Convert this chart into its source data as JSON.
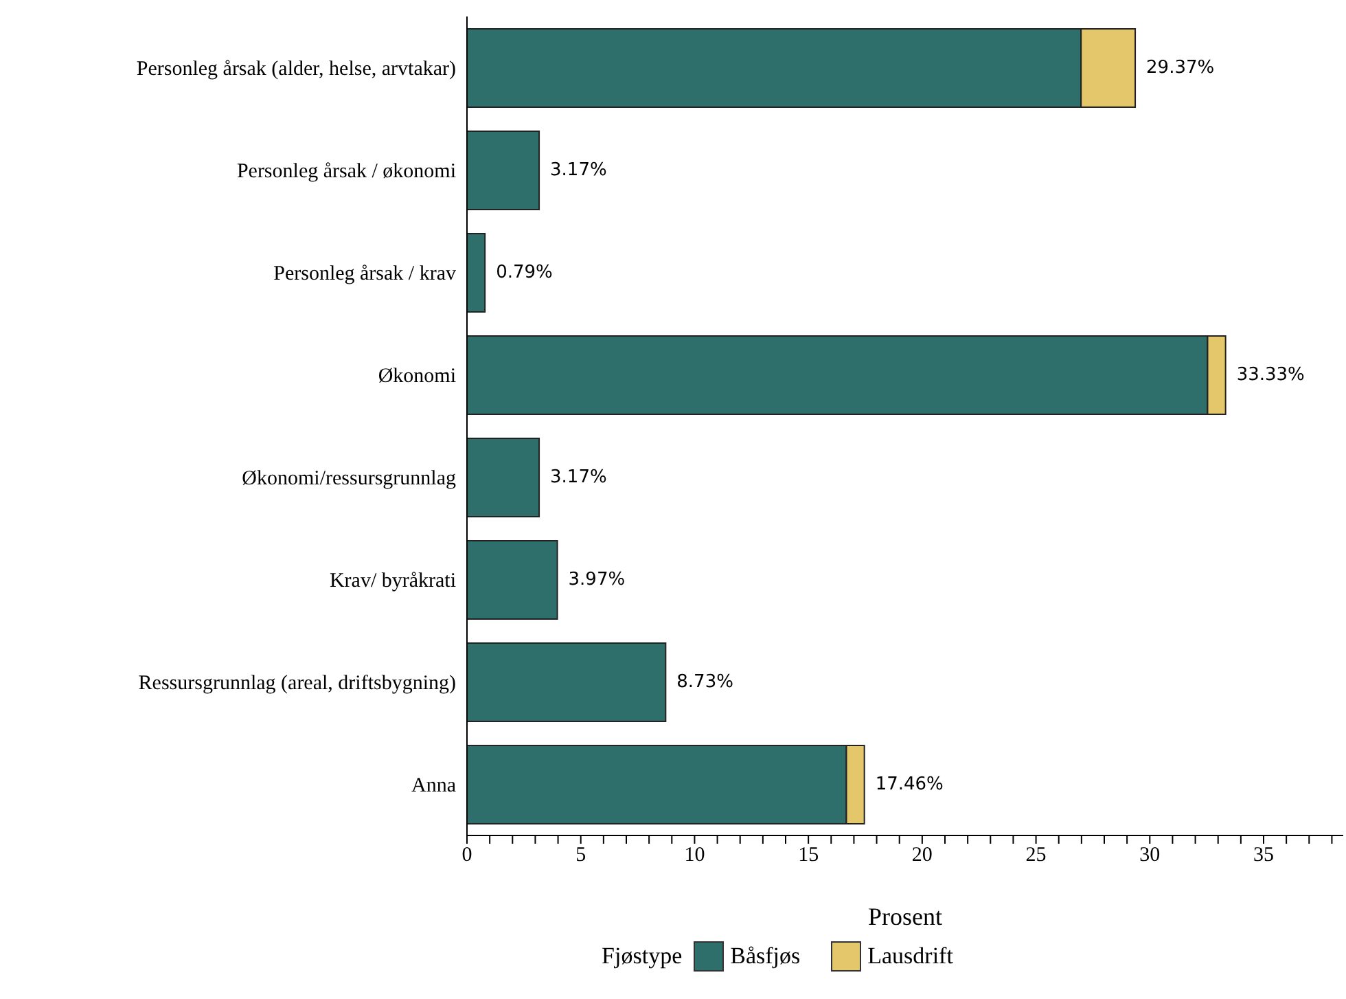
{
  "chart_data": {
    "type": "bar",
    "orientation": "horizontal",
    "stacked": true,
    "categories": [
      "Personleg årsak (alder, helse, arvtakar)",
      "Personleg årsak / økonomi",
      "Personleg årsak / krav",
      "Økonomi",
      "Økonomi/ressursgrunnlag",
      "Krav/ byråkrati",
      "Ressursgrunnlag (areal, driftsbygning)",
      "Anna"
    ],
    "series": [
      {
        "name": "Båsfjøs",
        "color": "#2e6e6b",
        "values": [
          26.98,
          3.17,
          0.79,
          32.54,
          3.17,
          3.97,
          8.73,
          16.67
        ]
      },
      {
        "name": "Lausdrift",
        "color": "#e5c76b",
        "values": [
          2.38,
          null,
          null,
          0.79,
          null,
          null,
          null,
          0.79
        ]
      }
    ],
    "totals": [
      "29.37%",
      "3.17%",
      "0.79%",
      "33.33%",
      "3.17%",
      "3.97%",
      "8.73%",
      "17.46%"
    ],
    "xlabel": "Prosent",
    "legend_title": "Fjøstype",
    "legend": "bottom",
    "grid": false,
    "xlim": [
      0,
      38.5
    ],
    "xticks": [
      0,
      {
        "value": 1,
        "label": null
      },
      {
        "value": 2,
        "label": null
      },
      {
        "value": 3,
        "label": null
      },
      {
        "value": 4,
        "label": null
      },
      5,
      {
        "value": 6,
        "label": null
      },
      {
        "value": 7,
        "label": null
      },
      {
        "value": 8,
        "label": null
      },
      {
        "value": 9,
        "label": null
      },
      10,
      {
        "value": 11,
        "label": null
      },
      {
        "value": 12,
        "label": null
      },
      {
        "value": 13,
        "label": null
      },
      {
        "value": 14,
        "label": null
      },
      15,
      {
        "value": 16,
        "label": null
      },
      {
        "value": 17,
        "label": null
      },
      {
        "value": 18,
        "label": null
      },
      {
        "value": 19,
        "label": null
      },
      20,
      {
        "value": 21,
        "label": null
      },
      {
        "value": 22,
        "label": null
      },
      {
        "value": 23,
        "label": null
      },
      {
        "value": 24,
        "label": null
      },
      25,
      {
        "value": 26,
        "label": null
      },
      {
        "value": 27,
        "label": null
      },
      {
        "value": 28,
        "label": null
      },
      {
        "value": 29,
        "label": null
      },
      30,
      {
        "value": 31,
        "label": null
      },
      {
        "value": 32,
        "label": null
      },
      {
        "value": 33,
        "label": null
      },
      {
        "value": 34,
        "label": null
      },
      35,
      {
        "value": 36,
        "label": null
      },
      {
        "value": 37,
        "label": null
      },
      {
        "value": 38,
        "label": null
      }
    ]
  }
}
